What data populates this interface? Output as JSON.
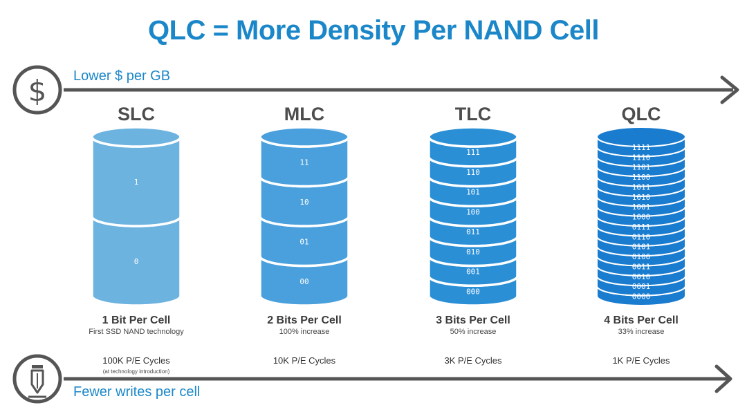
{
  "title": "QLC = More Density Per NAND Cell",
  "top_axis": {
    "label": "Lower $ per GB",
    "icon": "dollar-icon"
  },
  "bottom_axis": {
    "label": "Fewer writes per cell",
    "icon": "pencil-icon"
  },
  "colors": {
    "accent": "#1b87c9",
    "arrow": "#555555",
    "slc": "#6db3e0",
    "mlc": "#4aa0dc",
    "tlc": "#2b8fd6",
    "qlc": "#1a7ccf"
  },
  "cell_types": [
    {
      "name": "SLC",
      "bits_label": "1 Bit Per Cell",
      "description": "First SSD NAND technology",
      "cycles": "100K P/E Cycles",
      "cycles_note": "(at technology introduction)",
      "levels": [
        "1",
        "0"
      ]
    },
    {
      "name": "MLC",
      "bits_label": "2 Bits Per Cell",
      "description": "100% increase",
      "cycles": "10K P/E Cycles",
      "cycles_note": "",
      "levels": [
        "11",
        "10",
        "01",
        "00"
      ]
    },
    {
      "name": "TLC",
      "bits_label": "3 Bits Per Cell",
      "description": "50% increase",
      "cycles": "3K P/E Cycles",
      "cycles_note": "",
      "levels": [
        "111",
        "110",
        "101",
        "100",
        "011",
        "010",
        "001",
        "000"
      ]
    },
    {
      "name": "QLC",
      "bits_label": "4 Bits Per Cell",
      "description": "33% increase",
      "cycles": "1K P/E Cycles",
      "cycles_note": "",
      "levels": [
        "1111",
        "1110",
        "1101",
        "1100",
        "1011",
        "1010",
        "1001",
        "1000",
        "0111",
        "0110",
        "0101",
        "0100",
        "0011",
        "0010",
        "0001",
        "0000"
      ]
    }
  ]
}
